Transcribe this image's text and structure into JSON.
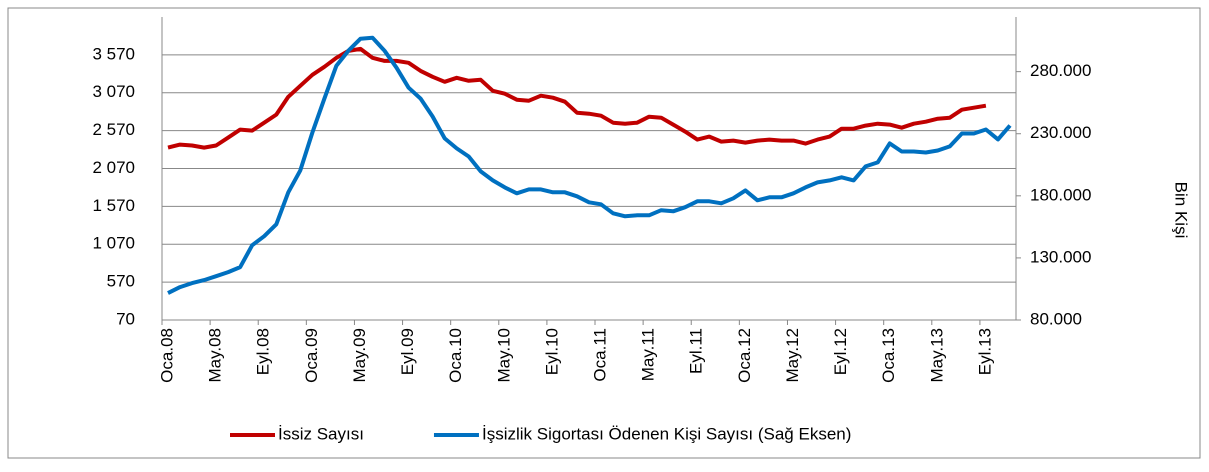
{
  "chart_data": {
    "type": "line",
    "categories": [
      "Oca.08",
      null,
      null,
      null,
      "May.08",
      null,
      null,
      null,
      "Eyl.08",
      null,
      null,
      null,
      "Oca.09",
      null,
      null,
      null,
      "May.09",
      null,
      null,
      null,
      "Eyl.09",
      null,
      null,
      null,
      "Oca.10",
      null,
      null,
      null,
      "May.10",
      null,
      null,
      null,
      "Eyl.10",
      null,
      null,
      null,
      "Oca.11",
      null,
      null,
      null,
      "May.11",
      null,
      null,
      null,
      "Eyl.11",
      null,
      null,
      null,
      "Oca.12",
      null,
      null,
      null,
      "May.12",
      null,
      null,
      null,
      "Eyl.12",
      null,
      null,
      null,
      "Oca.13",
      null,
      null,
      null,
      "May.13",
      null,
      null,
      null,
      "Eyl.13",
      null,
      null
    ],
    "series": [
      {
        "name": "İssiz Sayısı",
        "color": "#c00000",
        "values": [
          2346,
          2386,
          2373,
          2346,
          2373,
          2478,
          2583,
          2570,
          2675,
          2781,
          3017,
          3162,
          3307,
          3412,
          3531,
          3623,
          3649,
          3531,
          3491,
          3491,
          3465,
          3359,
          3281,
          3215,
          3267,
          3228,
          3241,
          3096,
          3057,
          2978,
          2965,
          3031,
          3004,
          2952,
          2807,
          2794,
          2767,
          2675,
          2662,
          2675,
          2754,
          2741,
          2649,
          2557,
          2452,
          2491,
          2425,
          2438,
          2412,
          2438,
          2452,
          2438,
          2438,
          2399,
          2452,
          2491,
          2596,
          2596,
          2636,
          2662,
          2649,
          2609,
          2662,
          2688,
          2728,
          2741,
          2846,
          2873,
          2899,
          null,
          null
        ]
      },
      {
        "name": "İşsizlik Sigortası Ödenen Kişi Sayısı (Sağ Eksen)",
        "color": "#0070c0",
        "axis": "y2",
        "values": [
          101700,
          106500,
          109700,
          112100,
          115300,
          118600,
          122600,
          140200,
          147500,
          157100,
          182800,
          200500,
          231000,
          258300,
          284800,
          296900,
          306500,
          307300,
          296900,
          283200,
          267100,
          258300,
          243900,
          226200,
          218200,
          211700,
          199700,
          192400,
          186800,
          182000,
          185200,
          185200,
          182800,
          182800,
          179600,
          174800,
          173200,
          165900,
          163500,
          164300,
          164300,
          168400,
          167500,
          170800,
          175600,
          175600,
          174000,
          178000,
          184400,
          176400,
          178800,
          178800,
          182000,
          186800,
          190800,
          192400,
          194900,
          192400,
          203700,
          206900,
          222200,
          215700,
          215700,
          214900,
          216500,
          219800,
          230200,
          230200,
          233400,
          225400,
          236600
        ]
      }
    ],
    "ylim": [
      70,
      4070
    ],
    "yticks": [
      70,
      570,
      {
        "value": 1070,
        "label": "1 070"
      },
      {
        "value": 1570,
        "label": "1 570"
      },
      {
        "value": 2070,
        "label": "2 070"
      },
      {
        "value": 2570,
        "label": "2 570"
      },
      {
        "value": 3070,
        "label": "3 070"
      },
      {
        "value": 3570,
        "label": "3 570"
      }
    ],
    "y2lim": [
      80000,
      324000
    ],
    "y2ticks": [
      {
        "value": 80000,
        "label": "80.000"
      },
      {
        "value": 130000,
        "label": "130.000"
      },
      {
        "value": 180000,
        "label": "180.000"
      },
      {
        "value": 230000,
        "label": "230.000"
      },
      {
        "value": 280000,
        "label": "280.000"
      }
    ],
    "y2label": "Bin Kişi",
    "grid": true,
    "legend": "bottom"
  }
}
